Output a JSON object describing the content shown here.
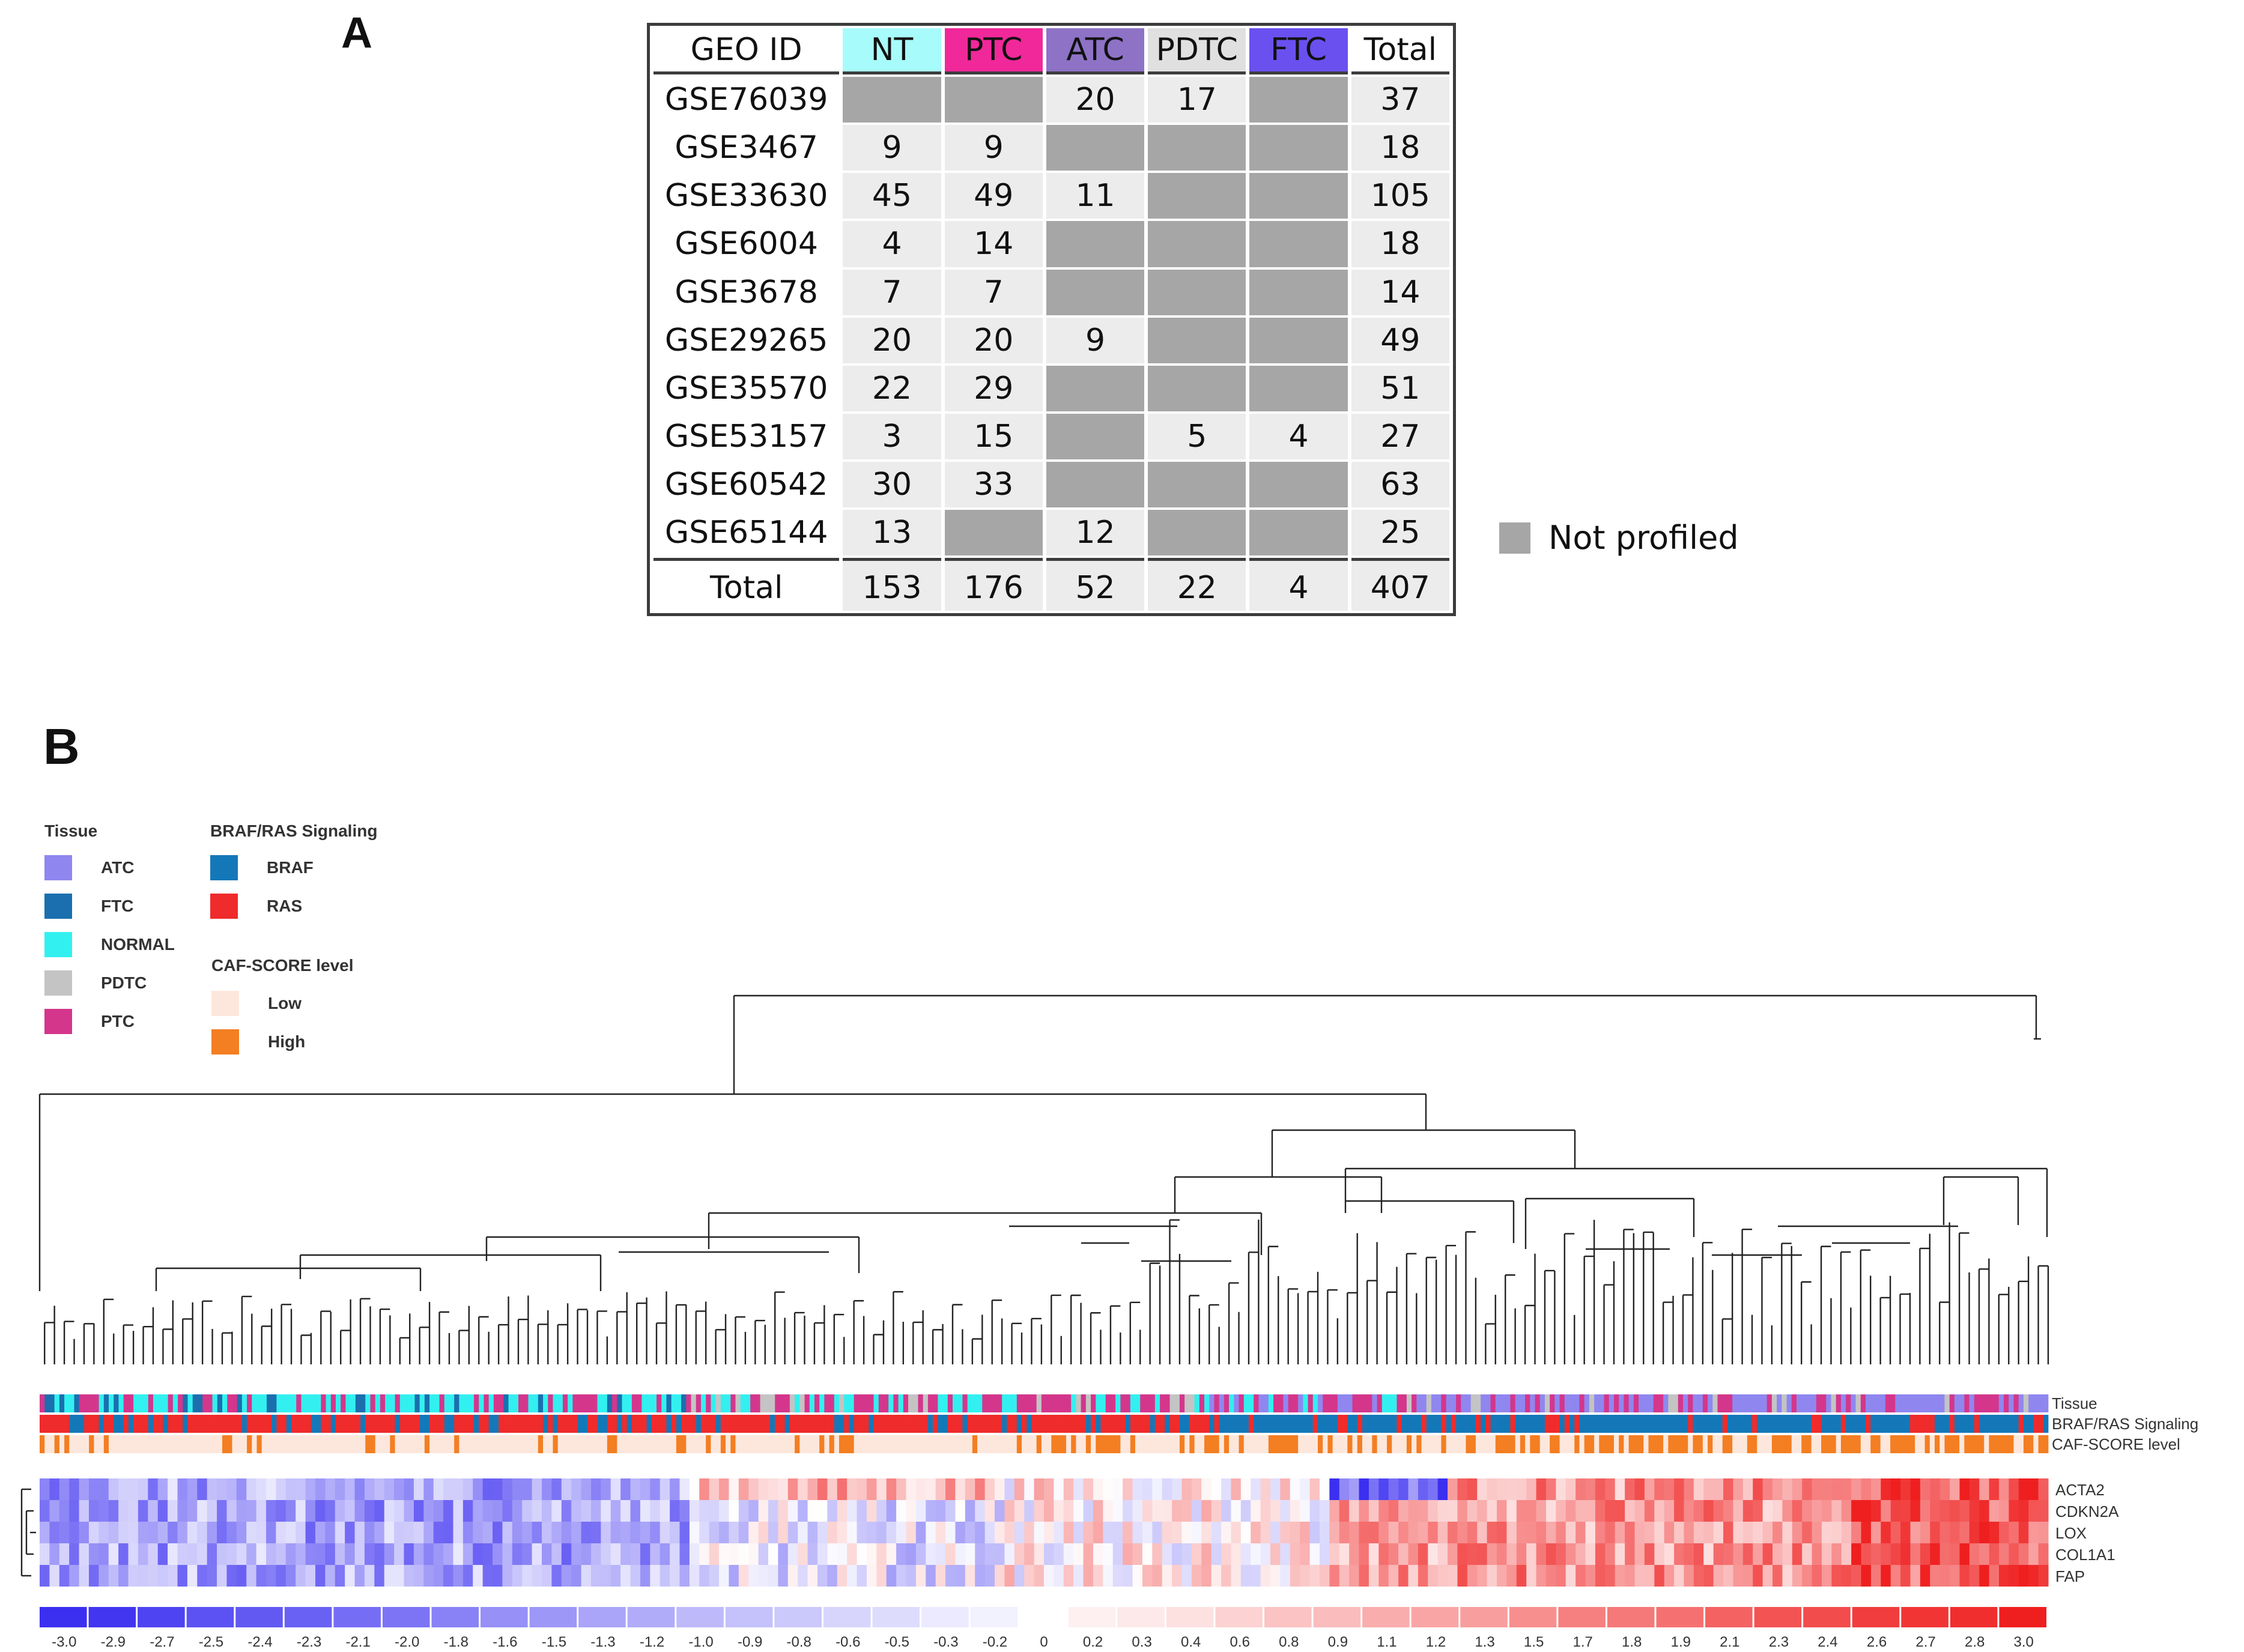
{
  "panel_a": {
    "label": "A",
    "headers": [
      "GEO ID",
      "NT",
      "PTC",
      "ATC",
      "PDTC",
      "FTC",
      "Total"
    ],
    "header_colors": [
      "#ffffff",
      "#a8fbfb",
      "#f0289a",
      "#8e72c6",
      "#e0e0e0",
      "#6a50ef",
      "#ffffff"
    ],
    "rows": [
      {
        "id": "GSE76039",
        "cells": [
          "",
          "",
          "20",
          "17",
          "",
          "37"
        ]
      },
      {
        "id": "GSE3467",
        "cells": [
          "9",
          "9",
          "",
          "",
          "",
          "18"
        ]
      },
      {
        "id": "GSE33630",
        "cells": [
          "45",
          "49",
          "11",
          "",
          "",
          "105"
        ]
      },
      {
        "id": "GSE6004",
        "cells": [
          "4",
          "14",
          "",
          "",
          "",
          "18"
        ]
      },
      {
        "id": "GSE3678",
        "cells": [
          "7",
          "7",
          "",
          "",
          "",
          "14"
        ]
      },
      {
        "id": "GSE29265",
        "cells": [
          "20",
          "20",
          "9",
          "",
          "",
          "49"
        ]
      },
      {
        "id": "GSE35570",
        "cells": [
          "22",
          "29",
          "",
          "",
          "",
          "51"
        ]
      },
      {
        "id": "GSE53157",
        "cells": [
          "3",
          "15",
          "",
          "5",
          "4",
          "27"
        ]
      },
      {
        "id": "GSE60542",
        "cells": [
          "30",
          "33",
          "",
          "",
          "",
          "63"
        ]
      },
      {
        "id": "GSE65144",
        "cells": [
          "13",
          "",
          "12",
          "",
          "",
          "25"
        ]
      }
    ],
    "total_row": {
      "id": "Total",
      "cells": [
        "153",
        "176",
        "52",
        "22",
        "4",
        "407"
      ]
    },
    "not_profiled_label": "Not profiled",
    "not_profiled_color": "#a6a6a6"
  },
  "panel_b": {
    "label": "B",
    "legend": {
      "tissue_title": "Tissue",
      "tissue": [
        {
          "label": "ATC",
          "color": "#8f87ef"
        },
        {
          "label": "FTC",
          "color": "#1b6fae"
        },
        {
          "label": "NORMAL",
          "color": "#33f0f0"
        },
        {
          "label": "PDTC",
          "color": "#c4c4c4"
        },
        {
          "label": "PTC",
          "color": "#d4368c"
        }
      ],
      "signaling_title": "BRAF/RAS Signaling",
      "signaling": [
        {
          "label": "BRAF",
          "color": "#1478b8"
        },
        {
          "label": "RAS",
          "color": "#ef2b2b"
        }
      ],
      "caf_title": "CAF-SCORE level",
      "caf": [
        {
          "label": "Low",
          "color": "#fde7dc"
        },
        {
          "label": "High",
          "color": "#f47e22"
        }
      ]
    },
    "tracks": [
      "Tissue",
      "BRAF/RAS Signaling",
      "CAF-SCORE level"
    ],
    "genes": [
      "ACTA2",
      "CDKN2A",
      "LOX",
      "COL1A1",
      "FAP"
    ],
    "scale_ticks": [
      "-3.0",
      "-2.9",
      "-2.7",
      "-2.5",
      "-2.4",
      "-2.3",
      "-2.1",
      "-2.0",
      "-1.8",
      "-1.6",
      "-1.5",
      "-1.3",
      "-1.2",
      "-1.0",
      "-0.9",
      "-0.8",
      "-0.6",
      "-0.5",
      "-0.3",
      "-0.2",
      "0",
      "0.2",
      "0.3",
      "0.4",
      "0.6",
      "0.8",
      "0.9",
      "1.1",
      "1.2",
      "1.3",
      "1.5",
      "1.7",
      "1.8",
      "1.9",
      "2.1",
      "2.3",
      "2.4",
      "2.6",
      "2.7",
      "2.8",
      "3.0"
    ],
    "colors": {
      "neg": "#3b2ff0",
      "pos": "#ef1f1f",
      "mid": "#ffffff"
    }
  }
}
